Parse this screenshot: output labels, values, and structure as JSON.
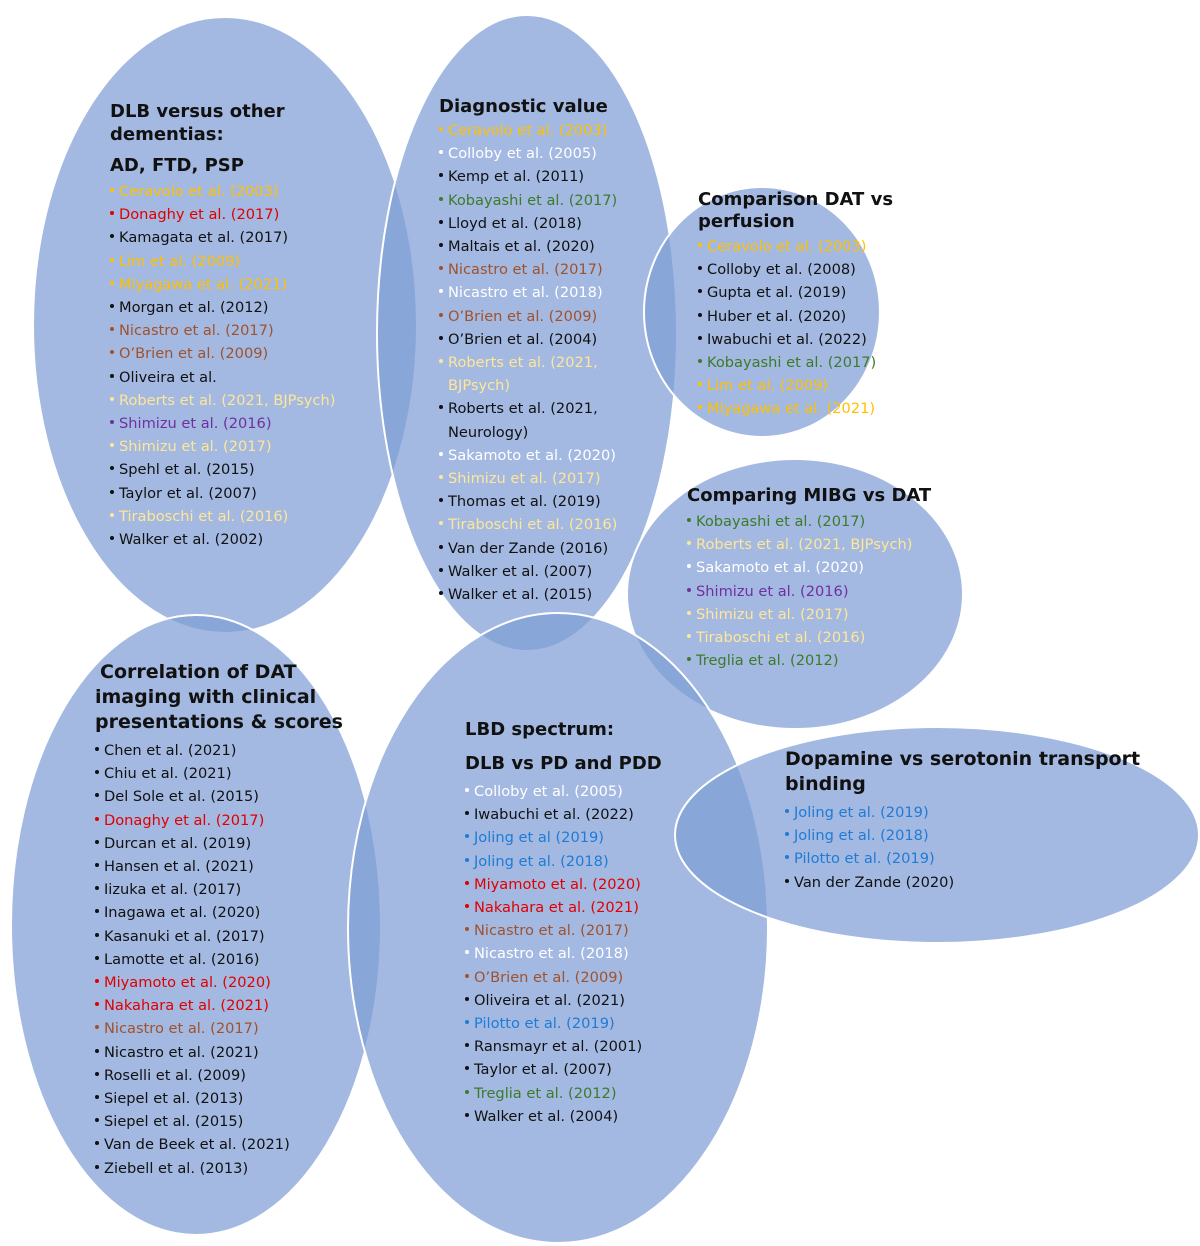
{
  "colors": {
    "bubble_fill": "#7f9ed6",
    "bubble_stroke": "#ffffff",
    "black": "#111111",
    "white": "#ffffff",
    "yellow": "#ffc000",
    "pale_yellow": "#ffe699",
    "red": "#e00000",
    "brown": "#a0522d",
    "green": "#3d7a2a",
    "purple": "#7030a0",
    "blue": "#1f7bd6"
  },
  "groups": [
    {
      "id": "dlb-vs-dementias",
      "title": [
        "DLB versus other dementias:",
        "AD, FTD, PSP"
      ],
      "items": [
        {
          "text": "Ceravolo et al. (2003)",
          "color": "yellow"
        },
        {
          "text": "Donaghy et al. (2017)",
          "color": "red"
        },
        {
          "text": "Kamagata et al. (2017)",
          "color": "black"
        },
        {
          "text": "Lim et al. (2009)",
          "color": "yellow"
        },
        {
          "text": "Miyagawa et al. (2021)",
          "color": "yellow"
        },
        {
          "text": "Morgan et al. (2012)",
          "color": "black"
        },
        {
          "text": "Nicastro et al. (2017)",
          "color": "brown"
        },
        {
          "text": "O’Brien et al. (2009)",
          "color": "brown"
        },
        {
          "text": "Oliveira et al.",
          "color": "black"
        },
        {
          "text": "Roberts et al. (2021, BJPsych)",
          "color": "pale_yellow"
        },
        {
          "text": "Shimizu et al. (2016)",
          "color": "purple"
        },
        {
          "text": "Shimizu et al. (2017)",
          "color": "pale_yellow"
        },
        {
          "text": "Spehl et al. (2015)",
          "color": "black"
        },
        {
          "text": "Taylor et al. (2007)",
          "color": "black"
        },
        {
          "text": "Tiraboschi et al. (2016)",
          "color": "pale_yellow"
        },
        {
          "text": "Walker et al. (2002)",
          "color": "black"
        }
      ]
    },
    {
      "id": "diagnostic-value",
      "title": [
        "Diagnostic value"
      ],
      "items": [
        {
          "text": "Ceravolo et al. (2003)",
          "color": "yellow"
        },
        {
          "text": "Colloby et al. (2005)",
          "color": "white"
        },
        {
          "text": "Kemp et al. (2011)",
          "color": "black"
        },
        {
          "text": "Kobayashi et al. (2017)",
          "color": "green"
        },
        {
          "text": "Lloyd et al. (2018)",
          "color": "black"
        },
        {
          "text": "Maltais et al. (2020)",
          "color": "black"
        },
        {
          "text": "Nicastro et al. (2017)",
          "color": "brown"
        },
        {
          "text": "Nicastro et al. (2018)",
          "color": "white"
        },
        {
          "text": "O’Brien et al. (2009)",
          "color": "brown"
        },
        {
          "text": "O’Brien et al. (2004)",
          "color": "black"
        },
        {
          "text": "Roberts et al. (2021,",
          "text2": "BJPsych)",
          "color": "pale_yellow"
        },
        {
          "text": "Roberts et al. (2021,",
          "text2": "Neurology)",
          "color": "black"
        },
        {
          "text": "Sakamoto et al. (2020)",
          "color": "white"
        },
        {
          "text": "Shimizu et al. (2017)",
          "color": "pale_yellow"
        },
        {
          "text": "Thomas et al. (2019)",
          "color": "black"
        },
        {
          "text": "Tiraboschi et al. (2016)",
          "color": "pale_yellow"
        },
        {
          "text": "Van der Zande (2016)",
          "color": "black"
        },
        {
          "text": "Walker et al. (2007)",
          "color": "black"
        },
        {
          "text": "Walker et al. (2015)",
          "color": "black"
        }
      ]
    },
    {
      "id": "dat-vs-perfusion",
      "title": [
        "Comparison DAT vs",
        "perfusion"
      ],
      "items": [
        {
          "text": "Ceravolo et al. (2003)",
          "color": "yellow"
        },
        {
          "text": "Colloby et al. (2008)",
          "color": "black"
        },
        {
          "text": "Gupta et al. (2019)",
          "color": "black"
        },
        {
          "text": "Huber et al. (2020)",
          "color": "black"
        },
        {
          "text": "Iwabuchi et al. (2022)",
          "color": "black"
        },
        {
          "text": "Kobayashi et al. (2017)",
          "color": "green"
        },
        {
          "text": "Lim et al. (2009)",
          "color": "yellow"
        },
        {
          "text": "Miyagawa et al. (2021)",
          "color": "yellow"
        }
      ]
    },
    {
      "id": "mibg-vs-dat",
      "title": [
        "Comparing MIBG vs DAT"
      ],
      "items": [
        {
          "text": "Kobayashi et al. (2017)",
          "color": "green"
        },
        {
          "text": "Roberts et al. (2021, BJPsych)",
          "color": "pale_yellow"
        },
        {
          "text": "Sakamoto et al. (2020)",
          "color": "white"
        },
        {
          "text": "Shimizu et al. (2016)",
          "color": "purple"
        },
        {
          "text": "Shimizu et al. (2017)",
          "color": "pale_yellow"
        },
        {
          "text": "Tiraboschi et al. (2016)",
          "color": "pale_yellow"
        },
        {
          "text": "Treglia et al. (2012)",
          "color": "green"
        }
      ]
    },
    {
      "id": "clinical-correlation",
      "title": [
        "Correlation of DAT",
        "imaging with clinical",
        "presentations & scores"
      ],
      "items": [
        {
          "text": "Chen et al. (2021)",
          "color": "black"
        },
        {
          "text": "Chiu et al. (2021)",
          "color": "black"
        },
        {
          "text": "Del Sole et al. (2015)",
          "color": "black"
        },
        {
          "text": "Donaghy et al. (2017)",
          "color": "red"
        },
        {
          "text": "Durcan et al. (2019)",
          "color": "black"
        },
        {
          "text": "Hansen et al. (2021)",
          "color": "black"
        },
        {
          "text": "Iizuka et al. (2017)",
          "color": "black"
        },
        {
          "text": "Inagawa et al. (2020)",
          "color": "black"
        },
        {
          "text": "Kasanuki et al. (2017)",
          "color": "black"
        },
        {
          "text": "Lamotte et al. (2016)",
          "color": "black"
        },
        {
          "text": "Miyamoto et al. (2020)",
          "color": "red"
        },
        {
          "text": "Nakahara et al. (2021)",
          "color": "red"
        },
        {
          "text": "Nicastro et al. (2017)",
          "color": "brown"
        },
        {
          "text": "Nicastro et al. (2021)",
          "color": "black"
        },
        {
          "text": "Roselli et al. (2009)",
          "color": "black"
        },
        {
          "text": "Siepel et al. (2013)",
          "color": "black"
        },
        {
          "text": "Siepel et al. (2015)",
          "color": "black"
        },
        {
          "text": "Van de Beek et al. (2021)",
          "color": "black"
        },
        {
          "text": "Ziebell et al. (2013)",
          "color": "black"
        }
      ]
    },
    {
      "id": "lbd-spectrum",
      "title": [
        "LBD spectrum:",
        "DLB vs PD and PDD"
      ],
      "items": [
        {
          "text": "Colloby et al. (2005)",
          "color": "white"
        },
        {
          "text": "Iwabuchi et al. (2022)",
          "color": "black"
        },
        {
          "text": "Joling et al (2019)",
          "color": "blue"
        },
        {
          "text": "Joling et al. (2018)",
          "color": "blue"
        },
        {
          "text": "Miyamoto et al. (2020)",
          "color": "red"
        },
        {
          "text": "Nakahara et al. (2021)",
          "color": "red"
        },
        {
          "text": "Nicastro et al. (2017)",
          "color": "brown"
        },
        {
          "text": "Nicastro et al. (2018)",
          "color": "white"
        },
        {
          "text": "O’Brien et al. (2009)",
          "color": "brown"
        },
        {
          "text": "Oliveira et al. (2021)",
          "color": "black"
        },
        {
          "text": "Pilotto et al. (2019)",
          "color": "blue"
        },
        {
          "text": "Ransmayr et al. (2001)",
          "color": "black"
        },
        {
          "text": "Taylor et al. (2007)",
          "color": "black"
        },
        {
          "text": "Treglia et al. (2012)",
          "color": "green"
        },
        {
          "text": "Walker et al. (2004)",
          "color": "black"
        }
      ]
    },
    {
      "id": "dopamine-vs-serotonin",
      "title": [
        "Dopamine vs serotonin transport",
        "binding"
      ],
      "items": [
        {
          "text": "Joling et al. (2019)",
          "color": "blue"
        },
        {
          "text": "Joling et al. (2018)",
          "color": "blue"
        },
        {
          "text": "Pilotto et al. (2019)",
          "color": "blue"
        },
        {
          "text": "Van der Zande (2020)",
          "color": "black"
        }
      ]
    }
  ]
}
